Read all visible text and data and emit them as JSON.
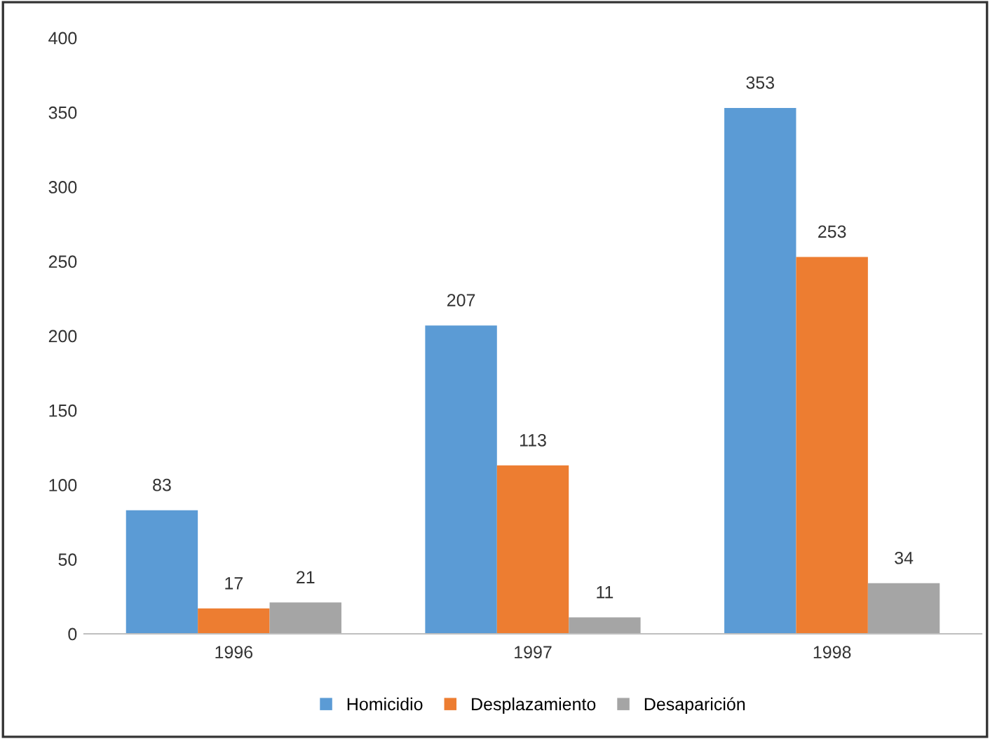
{
  "chart_data": {
    "type": "bar",
    "categories": [
      "1996",
      "1997",
      "1998"
    ],
    "series": [
      {
        "name": "Homicidio",
        "color": "#5b9bd5",
        "values": [
          83,
          207,
          353
        ]
      },
      {
        "name": "Desplazamiento",
        "color": "#ed7d31",
        "values": [
          17,
          113,
          253
        ]
      },
      {
        "name": "Desaparición",
        "color": "#a5a5a5",
        "values": [
          21,
          11,
          34
        ]
      }
    ],
    "ylim": [
      0,
      400
    ],
    "yticks": [
      0,
      50,
      100,
      150,
      200,
      250,
      300,
      350,
      400
    ],
    "grid": false,
    "legend": "bottom",
    "data_labels": true
  }
}
